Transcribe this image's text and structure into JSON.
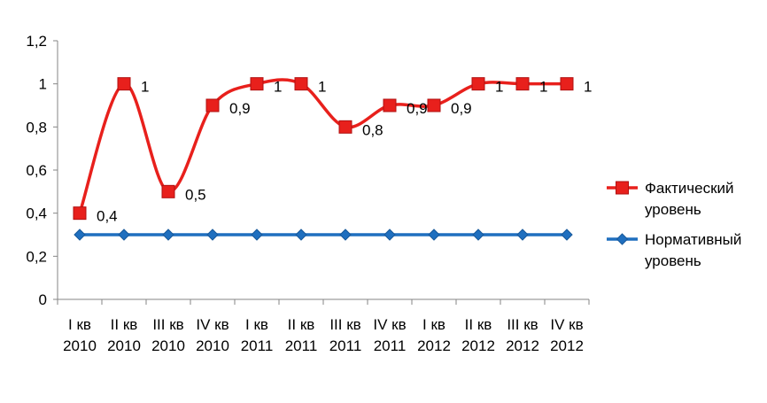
{
  "chart_data": {
    "type": "line",
    "categories": [
      [
        "I кв",
        "2010"
      ],
      [
        "II кв",
        "2010"
      ],
      [
        "III кв",
        "2010"
      ],
      [
        "IV кв",
        "2010"
      ],
      [
        "I кв",
        "2011"
      ],
      [
        "II кв",
        "2011"
      ],
      [
        "III кв",
        "2011"
      ],
      [
        "IV кв",
        "2011"
      ],
      [
        "I кв",
        "2012"
      ],
      [
        "II кв",
        "2012"
      ],
      [
        "III кв",
        "2012"
      ],
      [
        "IV кв",
        "2012"
      ]
    ],
    "y_ticks": [
      "0",
      "0,2",
      "0,4",
      "0,6",
      "0,8",
      "1",
      "1,2"
    ],
    "ylim": [
      0,
      1.2
    ],
    "grid": false,
    "legend_position": "right",
    "series": [
      {
        "name": "Фактический уровень",
        "legend_lines": [
          "Фактический",
          "уровень"
        ],
        "values": [
          0.4,
          1,
          0.5,
          0.9,
          1,
          1,
          0.8,
          0.9,
          0.9,
          1,
          1,
          1
        ],
        "data_labels": [
          "0,4",
          "1",
          "0,5",
          "0,9",
          "1",
          "1",
          "0,8",
          "0,9",
          "0,9",
          "1",
          "1",
          "1"
        ],
        "color": "#e8201c",
        "marker": "square",
        "smooth": true
      },
      {
        "name": "Нормативный уровень",
        "legend_lines": [
          "Нормативный",
          "уровень"
        ],
        "values": [
          0.3,
          0.3,
          0.3,
          0.3,
          0.3,
          0.3,
          0.3,
          0.3,
          0.3,
          0.3,
          0.3,
          0.3
        ],
        "color": "#1f6fbf",
        "marker": "diamond",
        "smooth": false
      }
    ]
  }
}
